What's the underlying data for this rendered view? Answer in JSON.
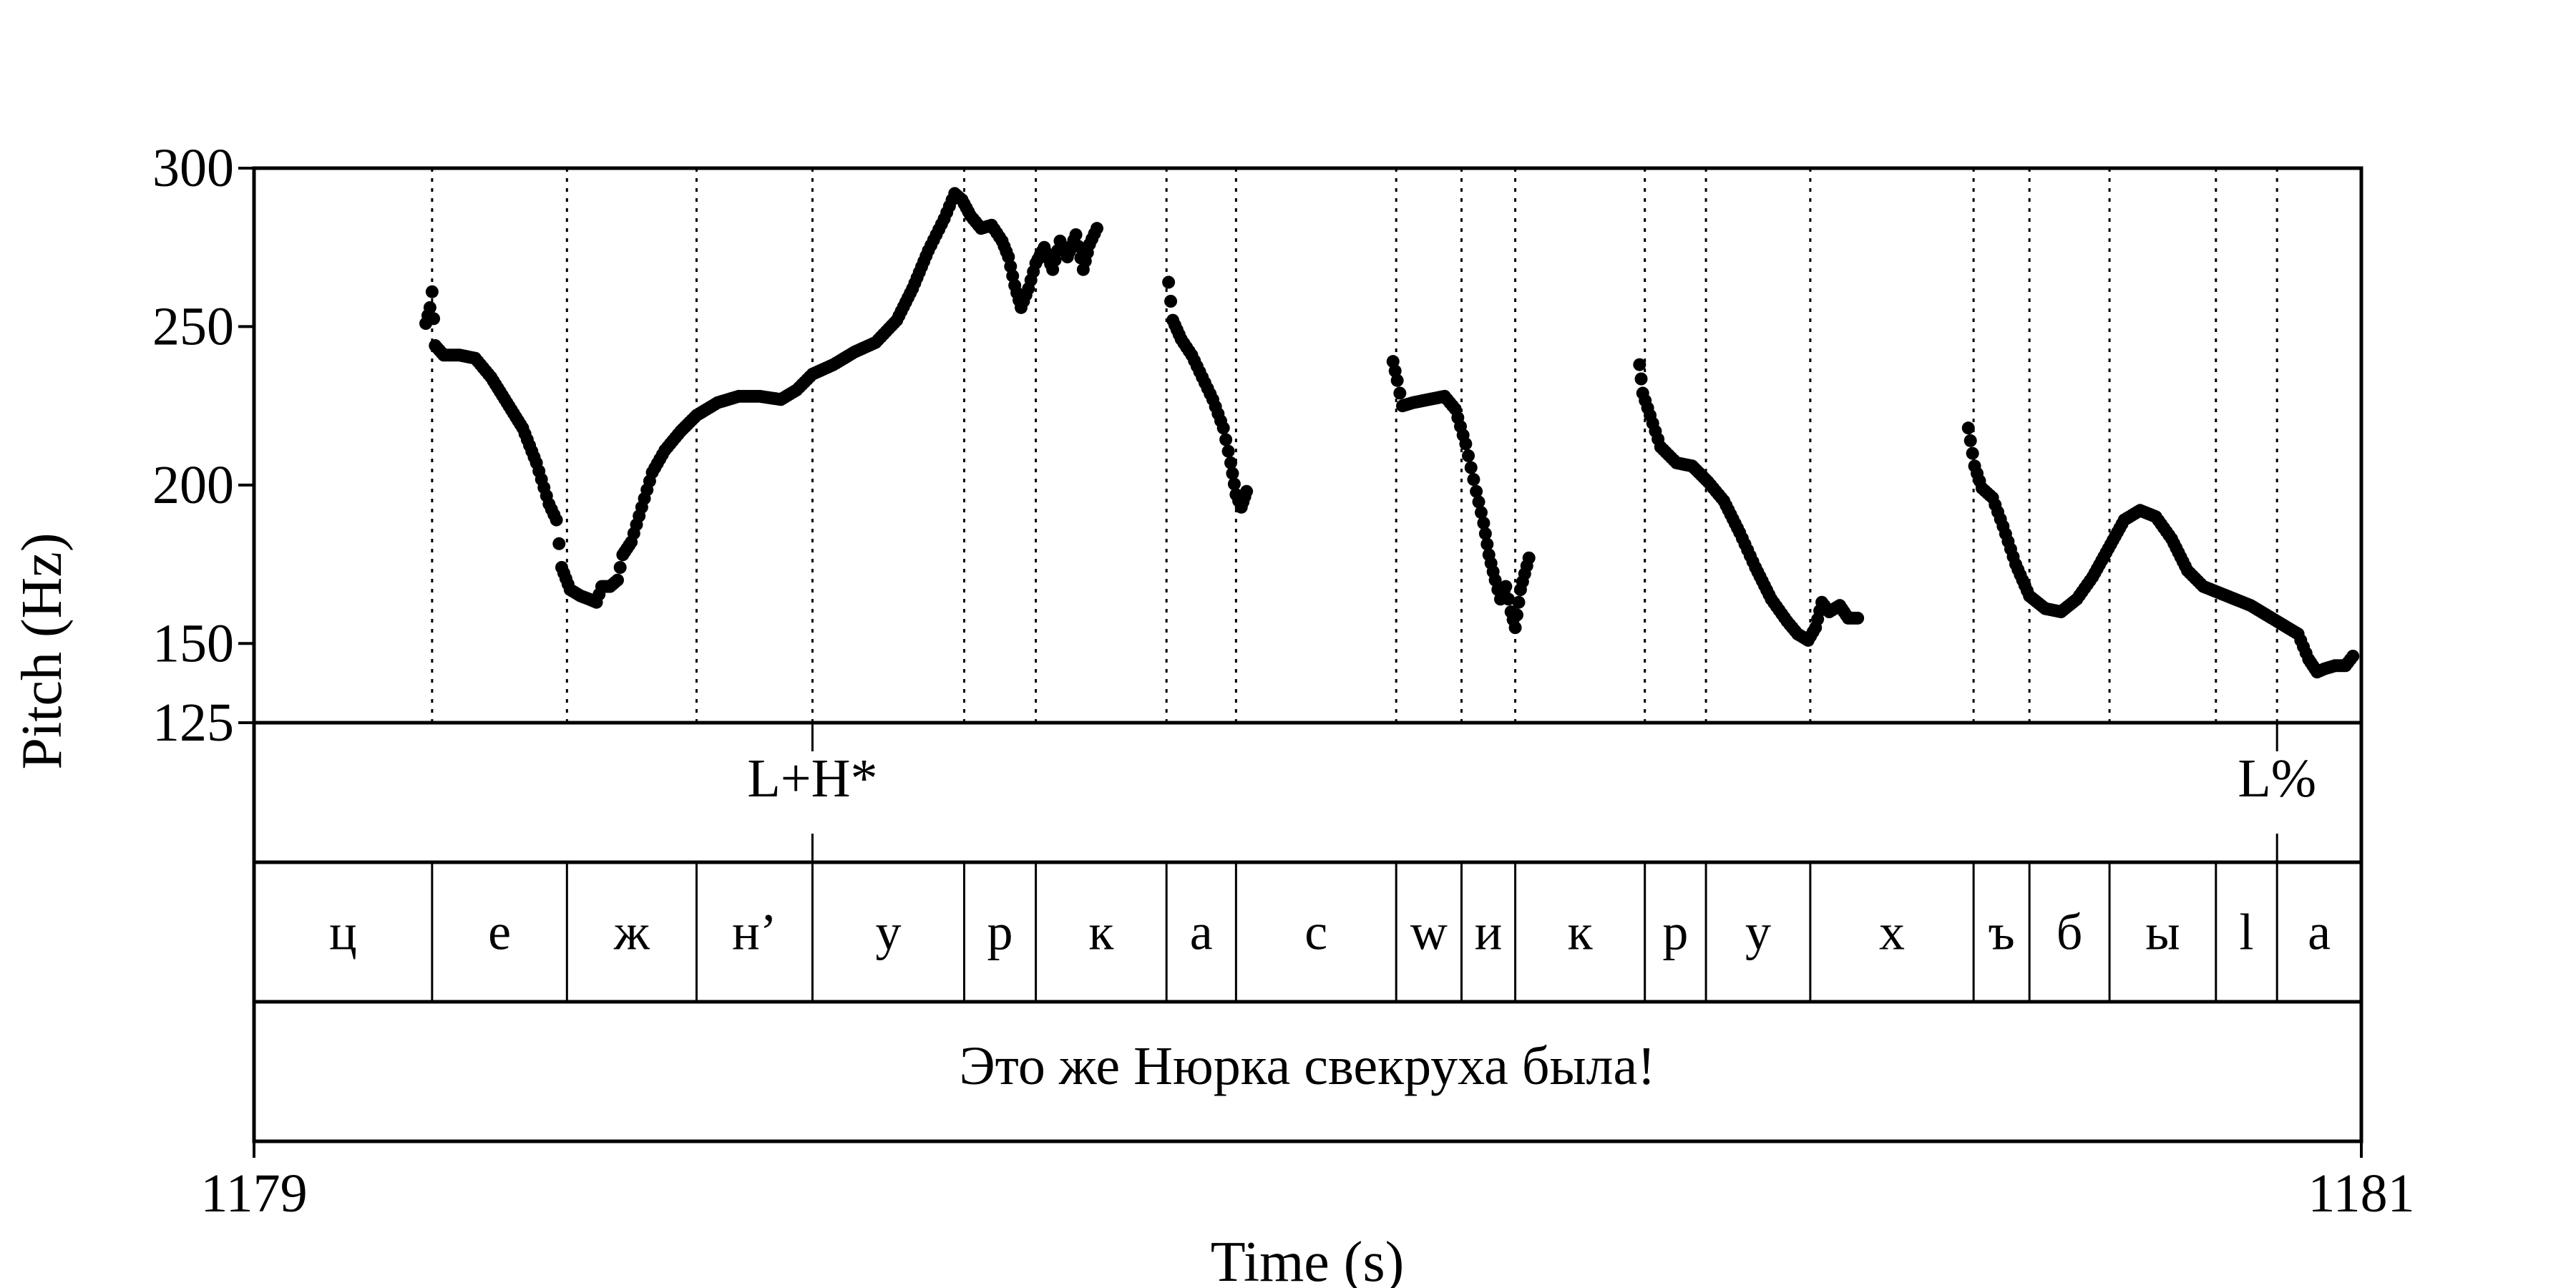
{
  "chart_data": {
    "type": "scatter",
    "title": "",
    "xlabel": "Time (s)",
    "ylabel": "Pitch (Hz)",
    "xlim": [
      1179,
      1181
    ],
    "ylim": [
      125,
      300
    ],
    "x_ticks": [
      "1179",
      "1181"
    ],
    "y_ticks": [
      {
        "value": 300,
        "label": "300"
      },
      {
        "value": 250,
        "label": "250"
      },
      {
        "value": 200,
        "label": "200"
      },
      {
        "value": 150,
        "label": "150"
      },
      {
        "value": 125,
        "label": "125"
      }
    ],
    "boundaries": [
      1179.169,
      1179.297,
      1179.42,
      1179.53,
      1179.674,
      1179.742,
      1179.866,
      1179.932,
      1180.084,
      1180.146,
      1180.197,
      1180.32,
      1180.378,
      1180.477,
      1180.632,
      1180.685,
      1180.761,
      1180.862,
      1180.92
    ],
    "segments": [
      "ц",
      "е",
      "ж",
      "н’",
      "у",
      "р",
      "к",
      "а",
      "с",
      "w",
      "и",
      "к",
      "р",
      "у",
      "х",
      "ъ",
      "б",
      "ы",
      "l",
      "а"
    ],
    "tones": [
      {
        "label": "L+H*",
        "time": 1179.53
      },
      {
        "label": "L%",
        "time": 1180.92
      }
    ],
    "sentence": "Это же Нюрка свекруха была!",
    "series": [
      {
        "points": [
          [
            1179.163,
            251
          ],
          [
            1179.167,
            256
          ],
          [
            1179.169,
            261
          ],
          [
            1179.172,
            244
          ],
          [
            1179.18,
            241
          ],
          [
            1179.195,
            241
          ],
          [
            1179.21,
            240
          ],
          [
            1179.225,
            234
          ],
          [
            1179.24,
            226
          ],
          [
            1179.255,
            218
          ],
          [
            1179.268,
            207
          ],
          [
            1179.28,
            194
          ],
          [
            1179.287,
            189
          ],
          [
            1179.292,
            174
          ],
          [
            1179.3,
            167
          ],
          [
            1179.31,
            165
          ],
          [
            1179.318,
            164
          ],
          [
            1179.325,
            163
          ],
          [
            1179.33,
            168
          ],
          [
            1179.338,
            168
          ],
          [
            1179.345,
            170
          ],
          [
            1179.35,
            178
          ],
          [
            1179.358,
            182
          ],
          [
            1179.368,
            193
          ],
          [
            1179.378,
            204
          ],
          [
            1179.39,
            211
          ],
          [
            1179.405,
            217
          ],
          [
            1179.42,
            222
          ],
          [
            1179.44,
            226
          ],
          [
            1179.46,
            228
          ],
          [
            1179.48,
            228
          ],
          [
            1179.5,
            227
          ],
          [
            1179.515,
            230
          ],
          [
            1179.53,
            235
          ],
          [
            1179.55,
            238
          ],
          [
            1179.57,
            242
          ],
          [
            1179.59,
            245
          ],
          [
            1179.61,
            252
          ],
          [
            1179.625,
            262
          ],
          [
            1179.64,
            274
          ],
          [
            1179.655,
            284
          ],
          [
            1179.665,
            292
          ],
          [
            1179.672,
            290
          ],
          [
            1179.68,
            285
          ],
          [
            1179.69,
            281
          ],
          [
            1179.7,
            282
          ],
          [
            1179.71,
            277
          ],
          [
            1179.716,
            272
          ],
          [
            1179.722,
            263
          ],
          [
            1179.728,
            256
          ],
          [
            1179.735,
            262
          ],
          [
            1179.742,
            270
          ],
          [
            1179.75,
            275
          ],
          [
            1179.758,
            268
          ],
          [
            1179.765,
            277
          ],
          [
            1179.772,
            272
          ],
          [
            1179.78,
            279
          ],
          [
            1179.787,
            268
          ],
          [
            1179.793,
            276
          ],
          [
            1179.8,
            281
          ],
          [
            1179.868,
            264
          ],
          [
            1179.872,
            252
          ],
          [
            1179.88,
            246
          ],
          [
            1179.89,
            241
          ],
          [
            1179.9,
            234
          ],
          [
            1179.91,
            227
          ],
          [
            1179.92,
            218
          ],
          [
            1179.927,
            207
          ],
          [
            1179.932,
            197
          ],
          [
            1179.937,
            193
          ],
          [
            1179.942,
            198
          ],
          [
            1180.081,
            239
          ],
          [
            1180.085,
            233
          ],
          [
            1180.09,
            225
          ],
          [
            1180.1,
            226
          ],
          [
            1180.115,
            227
          ],
          [
            1180.13,
            228
          ],
          [
            1180.14,
            224
          ],
          [
            1180.15,
            213
          ],
          [
            1180.16,
            198
          ],
          [
            1180.167,
            188
          ],
          [
            1180.172,
            178
          ],
          [
            1180.178,
            170
          ],
          [
            1180.183,
            164
          ],
          [
            1180.188,
            168
          ],
          [
            1180.193,
            160
          ],
          [
            1180.197,
            155
          ],
          [
            1180.202,
            167
          ],
          [
            1180.21,
            177
          ],
          [
            1180.315,
            238
          ],
          [
            1180.318,
            229
          ],
          [
            1180.325,
            222
          ],
          [
            1180.335,
            212
          ],
          [
            1180.35,
            207
          ],
          [
            1180.365,
            206
          ],
          [
            1180.38,
            201
          ],
          [
            1180.395,
            195
          ],
          [
            1180.41,
            185
          ],
          [
            1180.425,
            174
          ],
          [
            1180.44,
            164
          ],
          [
            1180.455,
            157
          ],
          [
            1180.465,
            153
          ],
          [
            1180.475,
            151
          ],
          [
            1180.482,
            155
          ],
          [
            1180.488,
            163
          ],
          [
            1180.495,
            160
          ],
          [
            1180.505,
            162
          ],
          [
            1180.513,
            158
          ],
          [
            1180.522,
            158
          ],
          [
            1180.627,
            218
          ],
          [
            1180.633,
            206
          ],
          [
            1180.64,
            199
          ],
          [
            1180.65,
            196
          ],
          [
            1180.66,
            187
          ],
          [
            1180.672,
            175
          ],
          [
            1180.685,
            165
          ],
          [
            1180.7,
            161
          ],
          [
            1180.715,
            160
          ],
          [
            1180.73,
            164
          ],
          [
            1180.745,
            171
          ],
          [
            1180.76,
            180
          ],
          [
            1180.775,
            189
          ],
          [
            1180.79,
            192
          ],
          [
            1180.805,
            190
          ],
          [
            1180.82,
            183
          ],
          [
            1180.835,
            173
          ],
          [
            1180.85,
            168
          ],
          [
            1180.865,
            166
          ],
          [
            1180.88,
            164
          ],
          [
            1180.895,
            162
          ],
          [
            1180.91,
            159
          ],
          [
            1180.925,
            156
          ],
          [
            1180.94,
            153
          ],
          [
            1180.95,
            145
          ],
          [
            1180.958,
            141
          ],
          [
            1180.965,
            142
          ],
          [
            1180.975,
            143
          ],
          [
            1180.985,
            143
          ],
          [
            1180.992,
            146
          ]
        ]
      }
    ]
  }
}
